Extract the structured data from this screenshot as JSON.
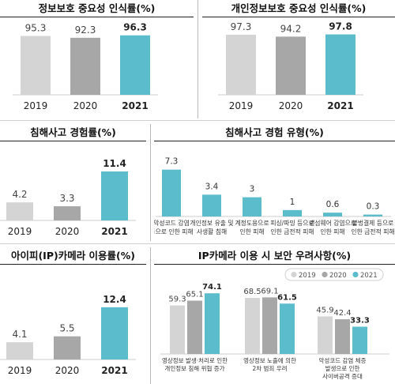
{
  "colors": {
    "c2019": "#d4d4d4",
    "c2020": "#a7a7a7",
    "c2021": "#5bbccb",
    "value_2021": "#222222",
    "value": "#444444"
  },
  "chart_data": [
    {
      "id": "c1",
      "type": "bar",
      "title": "정보보호 중요성 인식률(%)",
      "categories": [
        "2019",
        "2020",
        "2021"
      ],
      "values": [
        95.3,
        92.3,
        96.3
      ],
      "ylim": [
        0,
        110
      ]
    },
    {
      "id": "c2",
      "type": "bar",
      "title": "개인정보보호 중요성 인식률(%)",
      "categories": [
        "2019",
        "2020",
        "2021"
      ],
      "values": [
        97.3,
        94.2,
        97.8
      ],
      "ylim": [
        0,
        110
      ]
    },
    {
      "id": "c3",
      "type": "bar",
      "title": "침해사고 경험률(%)",
      "categories": [
        "2019",
        "2020",
        "2021"
      ],
      "values": [
        4.2,
        3.3,
        11.4
      ],
      "ylim": [
        0,
        12.5
      ]
    },
    {
      "id": "c4",
      "type": "bar",
      "title": "침해사고 경험 유형(%)",
      "categories": [
        [
          "악성코드 감염",
          "등으로 인한 피해"
        ],
        [
          "개인정보 유출 및",
          "사생활 침해"
        ],
        [
          "계정도용으로",
          "인한 피해"
        ],
        [
          "피싱/파밍 등으로",
          "인한 금전적 피해"
        ],
        [
          "랜섬웨어 감염으로",
          "인한 피해"
        ],
        [
          "불법결제 등으로",
          "인한 금전적 피해"
        ]
      ],
      "values": [
        7.3,
        3.4,
        3.0,
        1.0,
        0.6,
        0.3
      ],
      "ylim": [
        0,
        8
      ]
    },
    {
      "id": "c5",
      "type": "bar",
      "title": "아이피(IP)카메라 이용률(%)",
      "categories": [
        "2019",
        "2020",
        "2021"
      ],
      "values": [
        4.1,
        5.5,
        12.4
      ],
      "ylim": [
        0,
        13.5
      ]
    },
    {
      "id": "c6",
      "type": "bar",
      "title": "IP카메라 이용 시 보안 우려사항(%)",
      "legend": [
        "2019",
        "2020",
        "2021"
      ],
      "categories": [
        [
          "영상정보 발생·처리로 인한",
          "개인정보 침해 위협 증가"
        ],
        [
          "영상정보 노출에 의한",
          "2차 범죄 우려"
        ],
        [
          "악성코드 감염 체증",
          "발생으로 인한",
          "사이버공격 증대"
        ]
      ],
      "series": [
        {
          "name": "2019",
          "values": [
            59.3,
            68.5,
            45.9
          ]
        },
        {
          "name": "2020",
          "values": [
            65.1,
            69.1,
            42.4
          ]
        },
        {
          "name": "2021",
          "values": [
            74.1,
            61.5,
            33.3
          ]
        }
      ],
      "ylim": [
        0,
        82
      ]
    }
  ]
}
